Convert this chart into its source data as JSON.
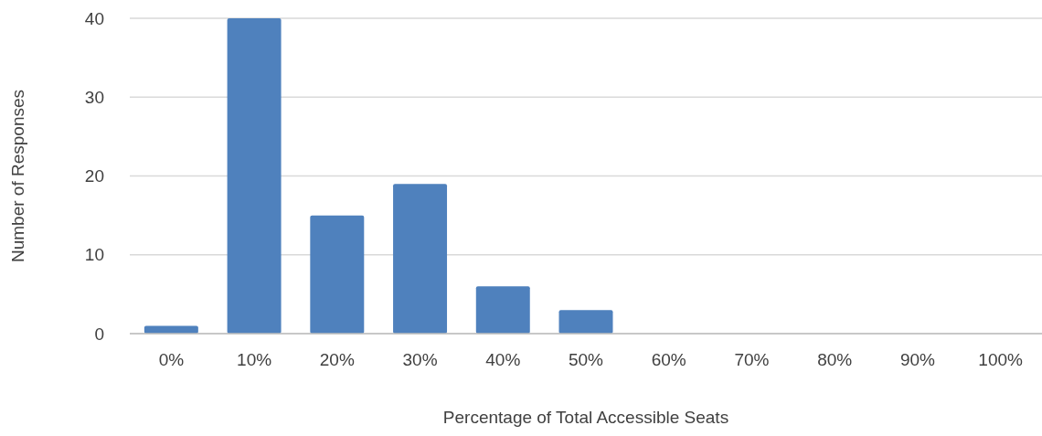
{
  "chart_data": {
    "type": "bar",
    "xlabel": "Percentage of Total Accessible Seats",
    "ylabel": "Number of Responses",
    "categories": [
      "0%",
      "10%",
      "20%",
      "30%",
      "40%",
      "50%",
      "60%",
      "70%",
      "80%",
      "90%",
      "100%"
    ],
    "values": [
      1,
      40,
      15,
      19,
      6,
      3,
      0,
      0,
      0,
      0,
      0
    ],
    "color": "#4f81bd",
    "ylim": [
      0,
      40
    ],
    "yticks": [
      0,
      10,
      20,
      30,
      40
    ],
    "grid": "y"
  }
}
